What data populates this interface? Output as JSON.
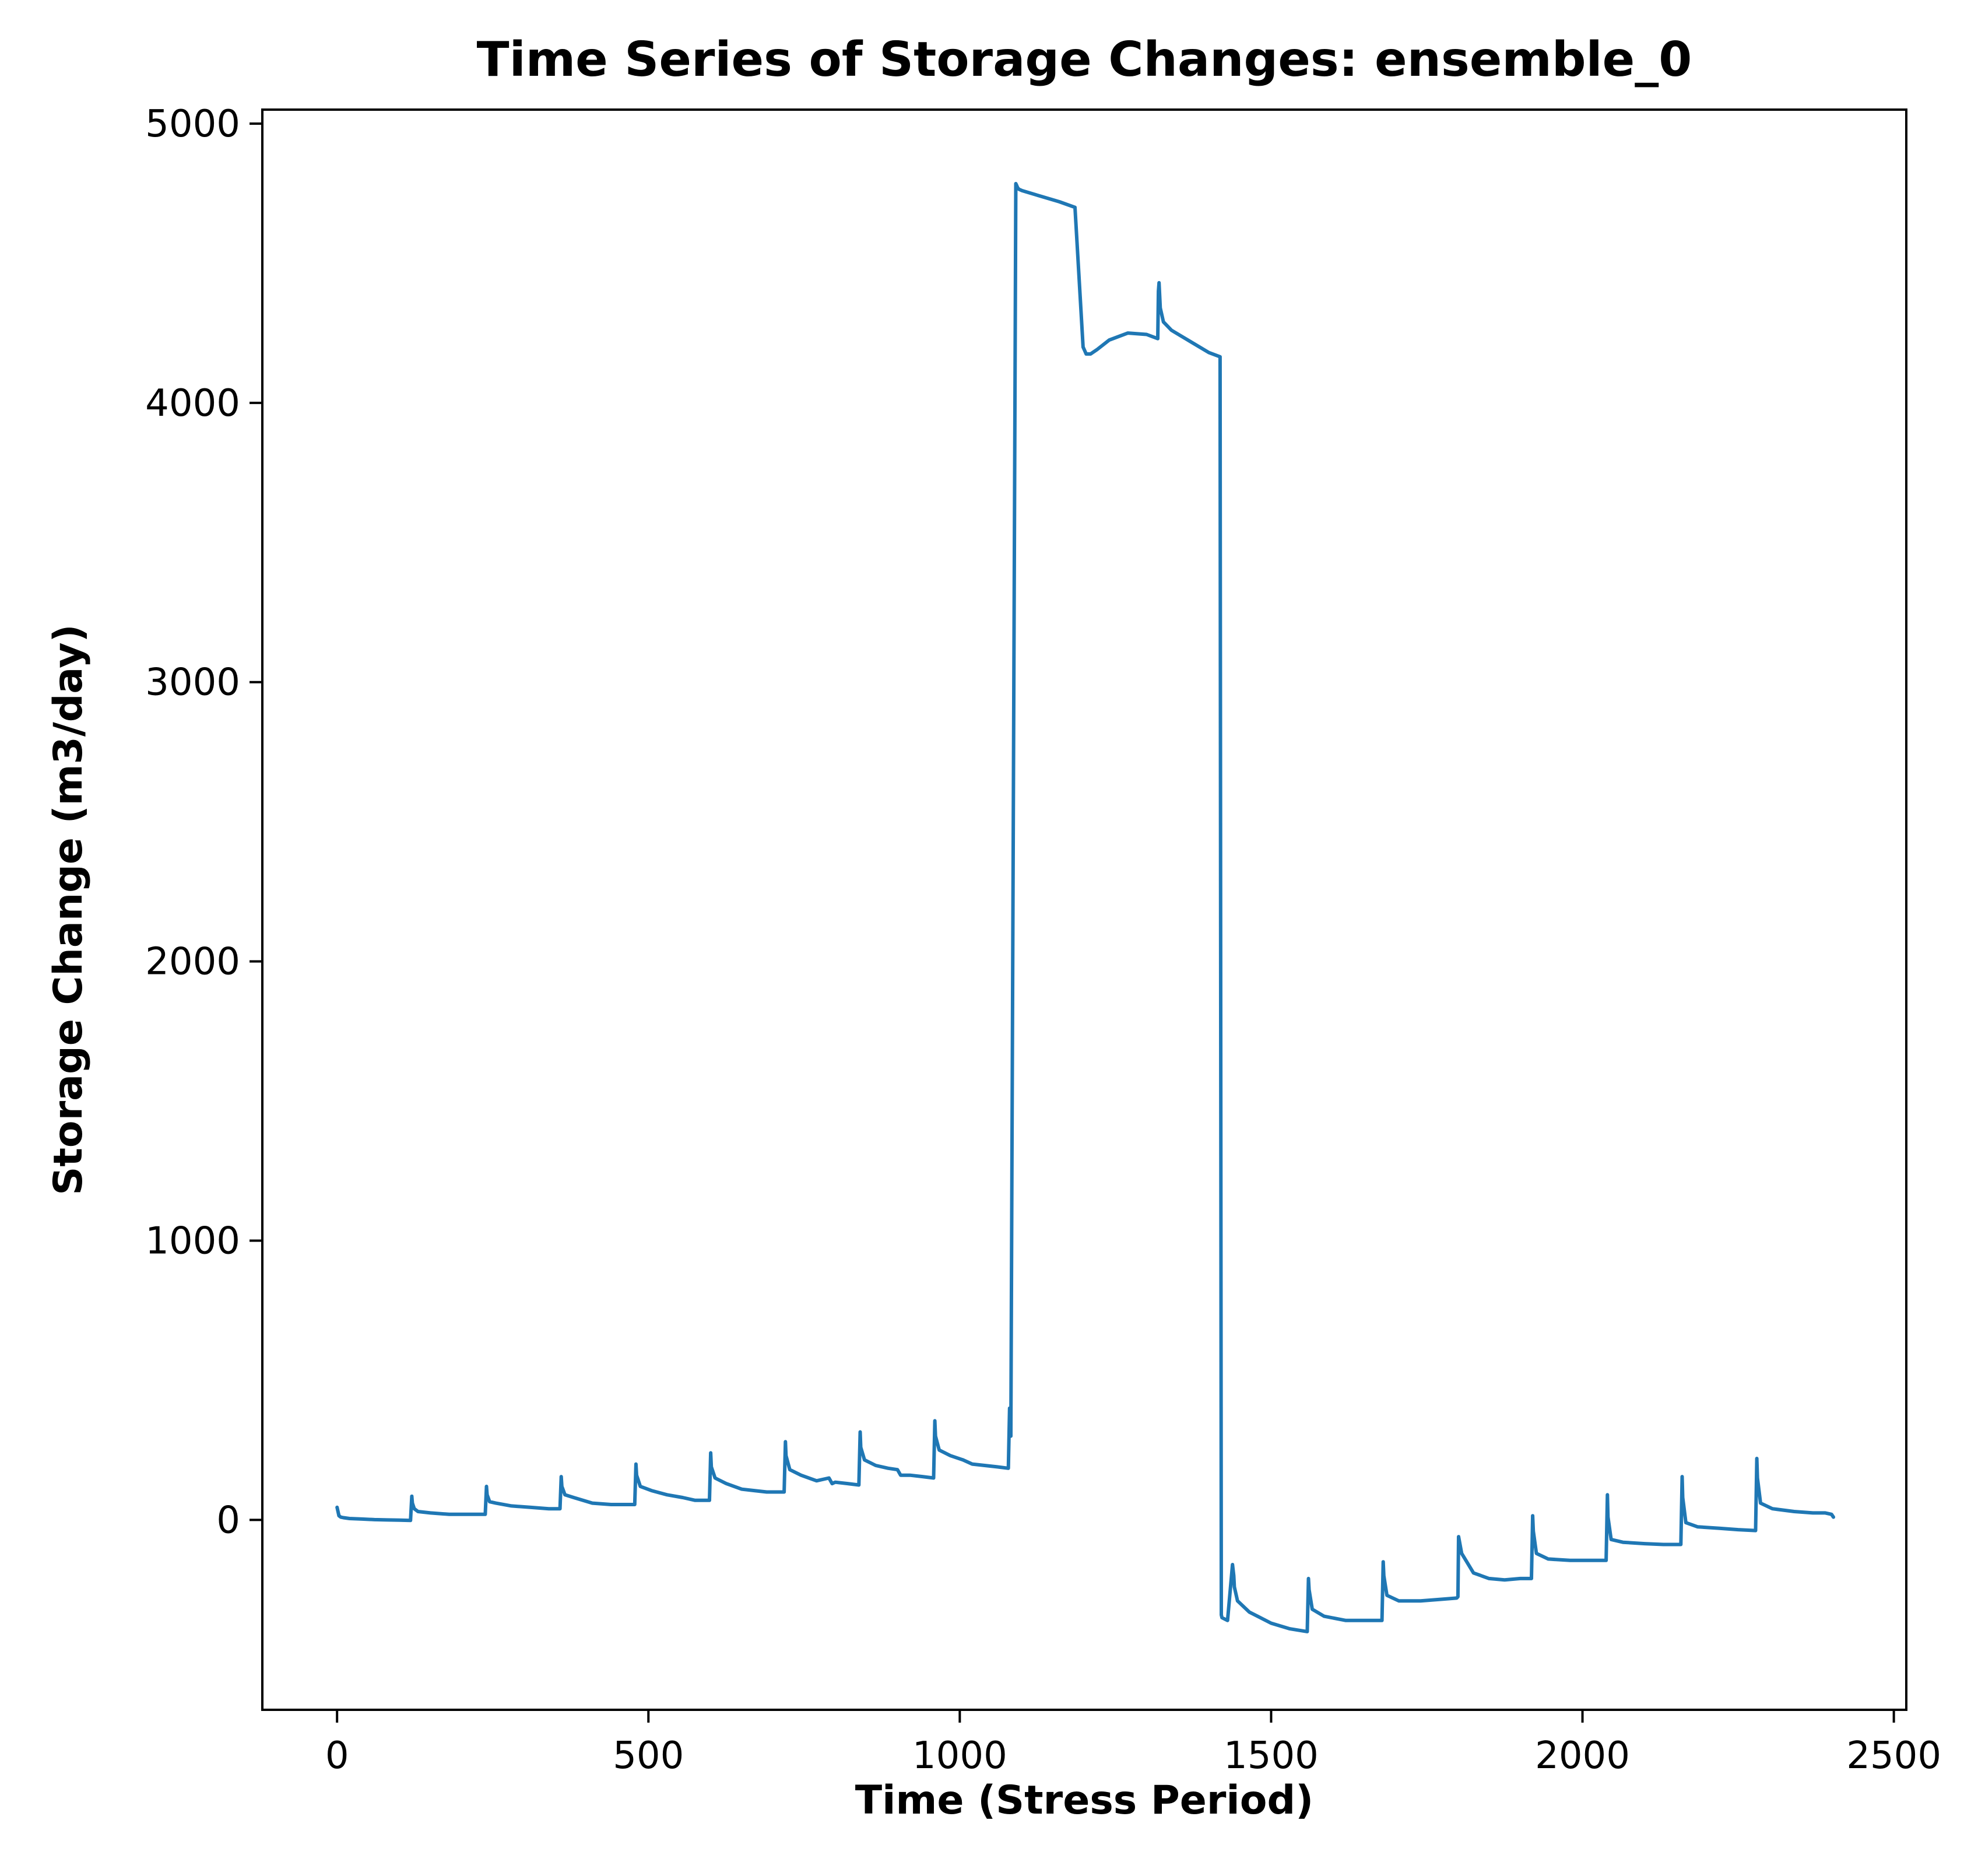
{
  "chart_data": {
    "type": "line",
    "title": "Time Series of Storage Changes: ensemble_0",
    "xlabel": "Time (Stress Period)",
    "ylabel": "Storage Change (m3/day)",
    "xlim": [
      -120,
      2520
    ],
    "ylim": [
      -680,
      5050
    ],
    "xticks": [
      0,
      500,
      1000,
      1500,
      2000,
      2500
    ],
    "yticks": [
      0,
      1000,
      2000,
      3000,
      4000,
      5000
    ],
    "xtick_labels": [
      "0",
      "500",
      "1000",
      "1500",
      "2000",
      "2500"
    ],
    "ytick_labels": [
      "0",
      "1000",
      "2000",
      "3000",
      "4000",
      "5000"
    ],
    "grid": false,
    "series": [
      {
        "color": "#1f77b4",
        "x": [
          0,
          3,
          6,
          10,
          20,
          40,
          60,
          80,
          100,
          118,
          120,
          121,
          124,
          130,
          150,
          180,
          210,
          238,
          240,
          241,
          245,
          255,
          280,
          310,
          340,
          358,
          360,
          361,
          366,
          380,
          410,
          440,
          460,
          478,
          480,
          481,
          487,
          505,
          530,
          555,
          575,
          598,
          600,
          601,
          607,
          625,
          650,
          670,
          690,
          718,
          720,
          721,
          727,
          745,
          770,
          790,
          795,
          800,
          820,
          838,
          840,
          841,
          847,
          865,
          885,
          900,
          905,
          920,
          940,
          958,
          960,
          961,
          967,
          985,
          1005,
          1020,
          1040,
          1060,
          1078,
          1080,
          1082,
          1090,
          1091,
          1093,
          1095,
          1100,
          1130,
          1160,
          1185,
          1198,
          1200,
          1203,
          1210,
          1220,
          1240,
          1270,
          1300,
          1318,
          1319,
          1320,
          1322,
          1327,
          1340,
          1370,
          1400,
          1418,
          1420,
          1421,
          1430,
          1438,
          1440,
          1441,
          1446,
          1465,
          1500,
          1530,
          1558,
          1560,
          1561,
          1566,
          1585,
          1620,
          1650,
          1678,
          1680,
          1681,
          1686,
          1705,
          1740,
          1770,
          1798,
          1800,
          1801,
          1806,
          1825,
          1850,
          1875,
          1900,
          1918,
          1920,
          1921,
          1926,
          1945,
          1980,
          2010,
          2038,
          2040,
          2041,
          2046,
          2065,
          2100,
          2130,
          2158,
          2160,
          2161,
          2166,
          2185,
          2220,
          2250,
          2278,
          2280,
          2281,
          2286,
          2305,
          2340,
          2370,
          2390,
          2400,
          2403
        ],
        "y": [
          45,
          15,
          10,
          8,
          5,
          3,
          1,
          0,
          -1,
          -2,
          85,
          60,
          40,
          30,
          25,
          20,
          20,
          20,
          120,
          90,
          65,
          60,
          50,
          45,
          40,
          40,
          155,
          120,
          90,
          80,
          60,
          55,
          55,
          55,
          200,
          160,
          120,
          105,
          90,
          80,
          70,
          70,
          240,
          190,
          150,
          130,
          110,
          105,
          100,
          100,
          280,
          230,
          180,
          160,
          140,
          150,
          130,
          135,
          130,
          125,
          315,
          260,
          215,
          195,
          185,
          180,
          160,
          160,
          155,
          150,
          355,
          300,
          250,
          230,
          215,
          200,
          195,
          190,
          185,
          400,
          300,
          4785,
          4780,
          4770,
          4765,
          4760,
          4740,
          4720,
          4700,
          4200,
          4190,
          4175,
          4175,
          4190,
          4225,
          4250,
          4245,
          4230,
          4400,
          4430,
          4340,
          4290,
          4260,
          4220,
          4180,
          4165,
          -340,
          -350,
          -360,
          -160,
          -200,
          -240,
          -290,
          -330,
          -370,
          -390,
          -400,
          -210,
          -250,
          -320,
          -345,
          -360,
          -360,
          -360,
          -150,
          -200,
          -270,
          -290,
          -290,
          -285,
          -280,
          -275,
          -60,
          -120,
          -190,
          -210,
          -215,
          -210,
          -210,
          15,
          -40,
          -120,
          -140,
          -145,
          -145,
          -145,
          90,
          10,
          -70,
          -80,
          -85,
          -88,
          -88,
          155,
          80,
          -10,
          -25,
          -30,
          -35,
          -38,
          220,
          150,
          60,
          40,
          30,
          25,
          25,
          20,
          10
        ]
      }
    ]
  }
}
